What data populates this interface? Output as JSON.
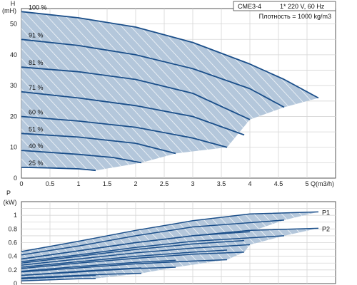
{
  "chart_data": [
    {
      "type": "line",
      "title": "",
      "xlabel": "Q(m3/h)",
      "ylabel": "H (mH)",
      "xlim": [
        0,
        5.5
      ],
      "ylim": [
        0,
        55
      ],
      "x_ticks": [
        "0",
        "0.5",
        "1",
        "1.5",
        "2",
        "2.5",
        "3",
        "3.5",
        "4",
        "4.5",
        "5"
      ],
      "y_ticks": [
        "0",
        "10",
        "20",
        "30",
        "40",
        "50"
      ],
      "grid": true,
      "info_box": {
        "model": "CME3-4",
        "supply": "1* 220 V, 60 Hz",
        "density": "Плотность = 1000 kg/m3"
      },
      "shaded_region_color": "#b4c7db",
      "series": [
        {
          "name": "100 %",
          "x": [
            0,
            1.0,
            2.0,
            3.0,
            4.0,
            4.6,
            5.2
          ],
          "y": [
            54,
            52,
            49,
            44,
            37,
            32,
            26
          ]
        },
        {
          "name": "91 %",
          "x": [
            0,
            1.0,
            2.0,
            3.0,
            4.0,
            4.6
          ],
          "y": [
            45,
            43,
            40,
            35.5,
            29,
            23
          ]
        },
        {
          "name": "81 %",
          "x": [
            0,
            1.0,
            2.0,
            3.0,
            4.0
          ],
          "y": [
            36,
            34.5,
            32,
            27.5,
            19
          ]
        },
        {
          "name": "71 %",
          "x": [
            0,
            1.0,
            2.0,
            3.0,
            3.9
          ],
          "y": [
            28,
            26,
            23.5,
            20,
            14
          ]
        },
        {
          "name": "60 %",
          "x": [
            0,
            1.0,
            2.0,
            3.0,
            3.6
          ],
          "y": [
            20,
            18.5,
            16.5,
            13,
            10
          ]
        },
        {
          "name": "51 %",
          "x": [
            0,
            1.0,
            2.0,
            2.7
          ],
          "y": [
            14.5,
            13.3,
            11.3,
            8
          ]
        },
        {
          "name": "40 %",
          "x": [
            0,
            1.0,
            1.6,
            2.1
          ],
          "y": [
            9,
            7.7,
            6.7,
            5
          ]
        },
        {
          "name": "25 %",
          "x": [
            0,
            0.5,
            1.0,
            1.3
          ],
          "y": [
            3.5,
            3.3,
            3.0,
            2.5
          ]
        }
      ],
      "lower_boundary": {
        "x": [
          1.3,
          2.1,
          2.7,
          3.6,
          4.0,
          4.6,
          5.2
        ],
        "y": [
          2.5,
          5,
          8,
          10,
          19,
          23,
          26
        ]
      }
    },
    {
      "type": "line",
      "title": "",
      "xlabel": "",
      "ylabel": "P (kW)",
      "xlim": [
        0,
        5.5
      ],
      "ylim": [
        0,
        1.2
      ],
      "y_ticks": [
        "0",
        "0.2",
        "0.4",
        "0.6",
        "0.8",
        "1"
      ],
      "grid": true,
      "band_labels": [
        "P1",
        "P2"
      ],
      "shaded_region_color": "#b4c7db",
      "series": [
        {
          "name": "P1 100 %",
          "x": [
            0,
            1.0,
            2.0,
            3.0,
            4.0,
            5.2
          ],
          "y": [
            0.47,
            0.62,
            0.78,
            0.92,
            1.02,
            1.05
          ]
        },
        {
          "name": "P1 91 %",
          "x": [
            0,
            1.0,
            2.0,
            3.0,
            4.6
          ],
          "y": [
            0.42,
            0.55,
            0.7,
            0.83,
            0.93
          ]
        },
        {
          "name": "P1 81 %",
          "x": [
            0,
            1.0,
            2.0,
            3.0,
            4.0
          ],
          "y": [
            0.36,
            0.48,
            0.6,
            0.7,
            0.76
          ]
        },
        {
          "name": "P1 71 %",
          "x": [
            0,
            1.0,
            2.0,
            3.0,
            3.9
          ],
          "y": [
            0.3,
            0.4,
            0.5,
            0.58,
            0.63
          ]
        },
        {
          "name": "P1 60 %",
          "x": [
            0,
            1.0,
            2.0,
            3.0,
            3.6
          ],
          "y": [
            0.24,
            0.32,
            0.4,
            0.46,
            0.49
          ]
        },
        {
          "name": "P1 51 %",
          "x": [
            0,
            1.0,
            2.0,
            2.7
          ],
          "y": [
            0.18,
            0.25,
            0.31,
            0.34
          ]
        },
        {
          "name": "P1 40 %",
          "x": [
            0,
            1.0,
            1.6,
            2.1
          ],
          "y": [
            0.12,
            0.18,
            0.21,
            0.23
          ]
        },
        {
          "name": "P1 25 %",
          "x": [
            0,
            0.5,
            1.0,
            1.3
          ],
          "y": [
            0.07,
            0.09,
            0.11,
            0.12
          ]
        },
        {
          "name": "P2 100 %",
          "x": [
            0,
            1.0,
            2.0,
            3.0,
            4.0,
            5.2
          ],
          "y": [
            0.36,
            0.48,
            0.6,
            0.7,
            0.78,
            0.81
          ]
        },
        {
          "name": "P2 91 %",
          "x": [
            0,
            1.0,
            2.0,
            3.0,
            4.6
          ],
          "y": [
            0.32,
            0.42,
            0.53,
            0.62,
            0.7
          ]
        },
        {
          "name": "P2 81 %",
          "x": [
            0,
            1.0,
            2.0,
            3.0,
            4.0
          ],
          "y": [
            0.27,
            0.36,
            0.45,
            0.52,
            0.57
          ]
        },
        {
          "name": "P2 71 %",
          "x": [
            0,
            1.0,
            2.0,
            3.0,
            3.9
          ],
          "y": [
            0.22,
            0.3,
            0.37,
            0.43,
            0.46
          ]
        },
        {
          "name": "P2 60 %",
          "x": [
            0,
            1.0,
            2.0,
            3.0,
            3.6
          ],
          "y": [
            0.17,
            0.23,
            0.29,
            0.33,
            0.35
          ]
        },
        {
          "name": "P2 51 %",
          "x": [
            0,
            1.0,
            2.0,
            2.7
          ],
          "y": [
            0.12,
            0.17,
            0.22,
            0.24
          ]
        },
        {
          "name": "P2 40 %",
          "x": [
            0,
            1.0,
            1.6,
            2.1
          ],
          "y": [
            0.08,
            0.12,
            0.14,
            0.15
          ]
        },
        {
          "name": "P2 25 %",
          "x": [
            0,
            0.5,
            1.0,
            1.3
          ],
          "y": [
            0.04,
            0.055,
            0.07,
            0.075
          ]
        }
      ]
    }
  ]
}
